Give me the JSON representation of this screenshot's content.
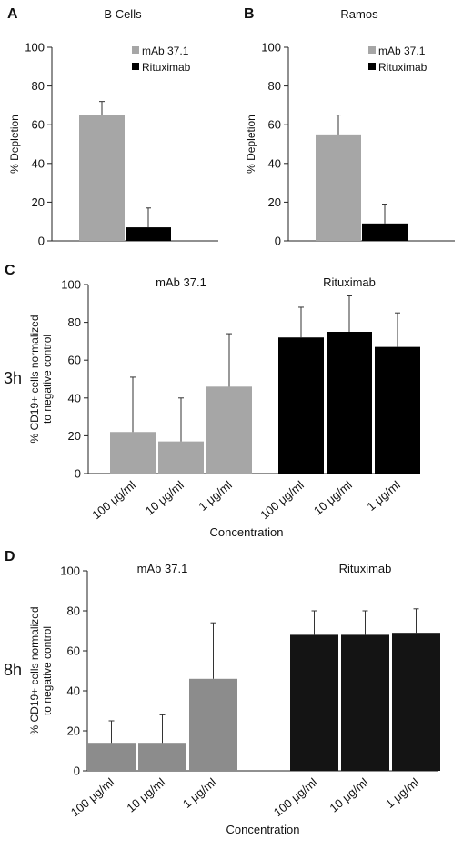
{
  "chart_data": [
    {
      "id": "A",
      "type": "bar",
      "panel_label": "A",
      "title": "B Cells",
      "ylabel": "% Depletion",
      "ylim": [
        0,
        100
      ],
      "yticks": [
        0,
        20,
        40,
        60,
        80,
        100
      ],
      "legend_position": "top-right",
      "series": [
        {
          "name": "mAb 37.1",
          "color": "#a6a6a6",
          "values": [
            65
          ],
          "errors": [
            7
          ]
        },
        {
          "name": "Rituximab",
          "color": "#000000",
          "values": [
            7
          ],
          "errors": [
            10
          ]
        }
      ]
    },
    {
      "id": "B",
      "type": "bar",
      "panel_label": "B",
      "title": "Ramos",
      "ylabel": "% Depletion",
      "ylim": [
        0,
        100
      ],
      "yticks": [
        0,
        20,
        40,
        60,
        80,
        100
      ],
      "legend_position": "top-right",
      "series": [
        {
          "name": "mAb 37.1",
          "color": "#a6a6a6",
          "values": [
            55
          ],
          "errors": [
            10
          ]
        },
        {
          "name": "Rituximab",
          "color": "#000000",
          "values": [
            9
          ],
          "errors": [
            10
          ]
        }
      ]
    },
    {
      "id": "C",
      "type": "bar",
      "panel_label": "C",
      "time_label": "3h",
      "ylabel_lines": [
        "% CD19+ cells normalized",
        "to negative control"
      ],
      "xlabel": "Concentration",
      "ylim": [
        0,
        100
      ],
      "yticks": [
        0,
        20,
        40,
        60,
        80,
        100
      ],
      "groups": [
        {
          "name": "mAb 37.1",
          "color": "#a6a6a6",
          "categories": [
            "100 μg/ml",
            "10 μg/ml",
            "1 μg/ml"
          ],
          "values": [
            22,
            17,
            46
          ],
          "errors": [
            29,
            23,
            28
          ]
        },
        {
          "name": "Rituximab",
          "color": "#000000",
          "categories": [
            "100 μg/ml",
            "10 μg/ml",
            "1 μg/ml"
          ],
          "values": [
            72,
            75,
            67
          ],
          "errors": [
            16,
            19,
            18
          ]
        }
      ]
    },
    {
      "id": "D",
      "type": "bar",
      "panel_label": "D",
      "time_label": "8h",
      "ylabel_lines": [
        "% CD19+ cells normalized",
        "to negative control"
      ],
      "xlabel": "Concentration",
      "ylim": [
        0,
        100
      ],
      "yticks": [
        0,
        20,
        40,
        60,
        80,
        100
      ],
      "groups": [
        {
          "name": "mAb 37.1",
          "color": "#8c8c8c",
          "categories": [
            "100 μg/ml",
            "10 μg/ml",
            "1 μg/ml"
          ],
          "values": [
            14,
            14,
            46
          ],
          "errors": [
            11,
            14,
            28
          ]
        },
        {
          "name": "Rituximab",
          "color": "#141414",
          "categories": [
            "100 μg/ml",
            "10 μg/ml",
            "1 μg/ml"
          ],
          "values": [
            68,
            68,
            69
          ],
          "errors": [
            12,
            12,
            12
          ]
        }
      ]
    }
  ]
}
